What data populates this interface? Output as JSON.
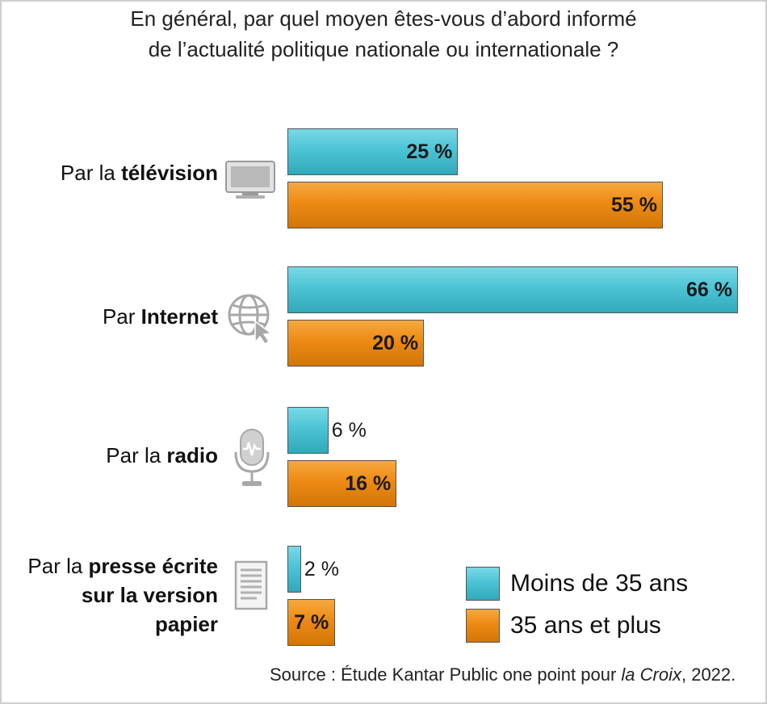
{
  "chart_data": {
    "type": "bar",
    "orientation": "horizontal",
    "title_line1": "En général, par quel moyen êtes-vous d’abord informé",
    "title_line2": "de l’actualité politique nationale ou internationale ?",
    "categories": [
      {
        "prefix": "Par la ",
        "bold": "télévision",
        "icon": "television-icon"
      },
      {
        "prefix": "Par ",
        "bold": "Internet",
        "icon": "globe-cursor-icon"
      },
      {
        "prefix": "Par la ",
        "bold": "radio",
        "icon": "microphone-icon"
      },
      {
        "prefix": "Par la ",
        "bold": "presse écrite sur la version papier",
        "icon": "newspaper-icon",
        "lines": [
          "presse écrite",
          "sur la version",
          "papier"
        ]
      }
    ],
    "series": [
      {
        "name": "Moins de 35 ans",
        "color": "#4cc4d6",
        "values": [
          25,
          66,
          6,
          2
        ],
        "labels": [
          "25 %",
          "66 %",
          "6 %",
          "2 %"
        ]
      },
      {
        "name": "35 ans et plus",
        "color": "#ee8a14",
        "values": [
          55,
          20,
          16,
          7
        ],
        "labels": [
          "55 %",
          "20 %",
          "16 %",
          "7 %"
        ]
      }
    ],
    "xlim": [
      0,
      66
    ],
    "legend_position": "bottom-right",
    "grid": false,
    "source_prefix": "Source : Étude Kantar Public one point pour ",
    "source_italic": "la Croix",
    "source_suffix": ", 2022."
  }
}
